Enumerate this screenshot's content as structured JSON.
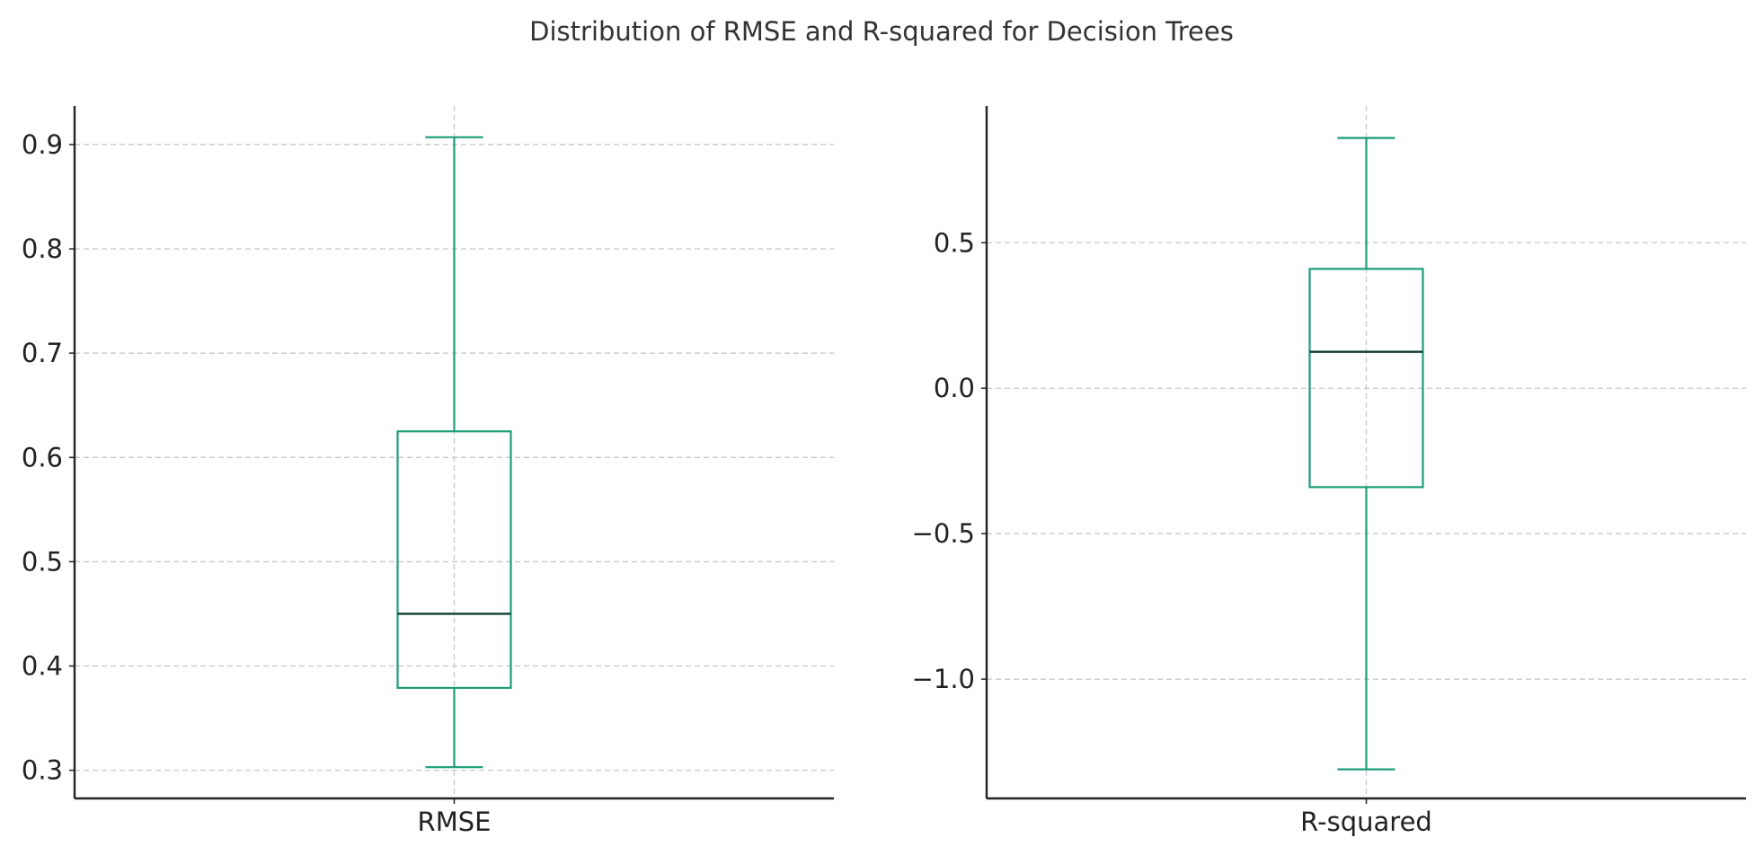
{
  "figure": {
    "title": "Distribution of RMSE and R-squared for Decision Trees"
  },
  "colors": {
    "box": "#1a9e7a",
    "median": "#0f3d33",
    "grid": "#c8c8c8",
    "axis": "#222222",
    "text": "#222222"
  },
  "chart_data": [
    {
      "type": "box",
      "categories": [
        "RMSE"
      ],
      "box": {
        "min": 0.303,
        "q1": 0.379,
        "median": 0.45,
        "q3": 0.625,
        "max": 0.907
      },
      "yticks": [
        0.3,
        0.4,
        0.5,
        0.6,
        0.7,
        0.8,
        0.9
      ],
      "ytick_labels": [
        "0.3",
        "0.4",
        "0.5",
        "0.6",
        "0.7",
        "0.8",
        "0.9"
      ],
      "ylim": [
        0.273,
        0.937
      ],
      "grid": true
    },
    {
      "type": "box",
      "categories": [
        "R-squared"
      ],
      "box": {
        "min": -1.31,
        "q1": -0.34,
        "median": 0.125,
        "q3": 0.41,
        "max": 0.86
      },
      "yticks": [
        -1.0,
        -0.5,
        0.0,
        0.5
      ],
      "ytick_labels": [
        "−1.0",
        "−0.5",
        "0.0",
        "0.5"
      ],
      "ylim": [
        -1.41,
        0.97
      ],
      "grid": true
    }
  ]
}
